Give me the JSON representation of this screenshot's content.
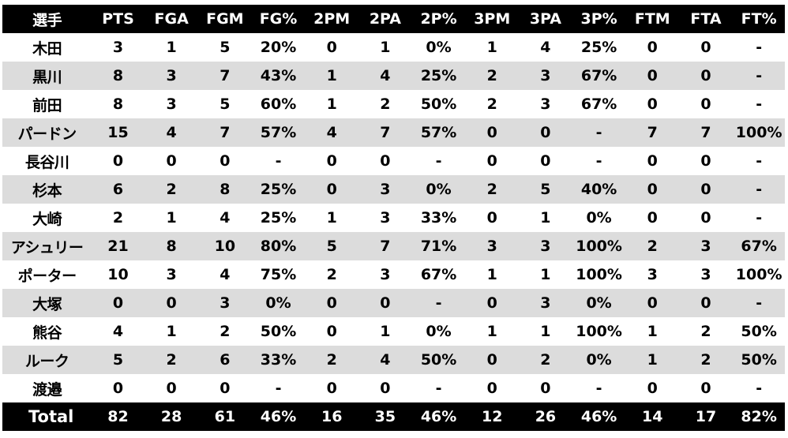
{
  "chart_data": {
    "type": "table",
    "columns": [
      "選手",
      "PTS",
      "FGA",
      "FGM",
      "FG%",
      "2PM",
      "2PA",
      "2P%",
      "3PM",
      "3PA",
      "3P%",
      "FTM",
      "FTA",
      "FT%"
    ],
    "rows": [
      [
        "木田",
        "3",
        "1",
        "5",
        "20%",
        "0",
        "1",
        "0%",
        "1",
        "4",
        "25%",
        "0",
        "0",
        "-"
      ],
      [
        "黒川",
        "8",
        "3",
        "7",
        "43%",
        "1",
        "4",
        "25%",
        "2",
        "3",
        "67%",
        "0",
        "0",
        "-"
      ],
      [
        "前田",
        "8",
        "3",
        "5",
        "60%",
        "1",
        "2",
        "50%",
        "2",
        "3",
        "67%",
        "0",
        "0",
        "-"
      ],
      [
        "パードン",
        "15",
        "4",
        "7",
        "57%",
        "4",
        "7",
        "57%",
        "0",
        "0",
        "-",
        "7",
        "7",
        "100%"
      ],
      [
        "長谷川",
        "0",
        "0",
        "0",
        "-",
        "0",
        "0",
        "-",
        "0",
        "0",
        "-",
        "0",
        "0",
        "-"
      ],
      [
        "杉本",
        "6",
        "2",
        "8",
        "25%",
        "0",
        "3",
        "0%",
        "2",
        "5",
        "40%",
        "0",
        "0",
        "-"
      ],
      [
        "大崎",
        "2",
        "1",
        "4",
        "25%",
        "1",
        "3",
        "33%",
        "0",
        "1",
        "0%",
        "0",
        "0",
        "-"
      ],
      [
        "アシュリー",
        "21",
        "8",
        "10",
        "80%",
        "5",
        "7",
        "71%",
        "3",
        "3",
        "100%",
        "2",
        "3",
        "67%"
      ],
      [
        "ポーター",
        "10",
        "3",
        "4",
        "75%",
        "2",
        "3",
        "67%",
        "1",
        "1",
        "100%",
        "3",
        "3",
        "100%"
      ],
      [
        "大塚",
        "0",
        "0",
        "3",
        "0%",
        "0",
        "0",
        "-",
        "0",
        "3",
        "0%",
        "0",
        "0",
        "-"
      ],
      [
        "熊谷",
        "4",
        "1",
        "2",
        "50%",
        "0",
        "1",
        "0%",
        "1",
        "1",
        "100%",
        "1",
        "2",
        "50%"
      ],
      [
        "ルーク",
        "5",
        "2",
        "6",
        "33%",
        "2",
        "4",
        "50%",
        "0",
        "2",
        "0%",
        "1",
        "2",
        "50%"
      ],
      [
        "渡邉",
        "0",
        "0",
        "0",
        "-",
        "0",
        "0",
        "-",
        "0",
        "0",
        "-",
        "0",
        "0",
        "-"
      ]
    ],
    "totals": [
      "Total",
      "82",
      "28",
      "61",
      "46%",
      "16",
      "35",
      "46%",
      "12",
      "26",
      "46%",
      "14",
      "17",
      "82%"
    ]
  },
  "colors": {
    "header_bg": "#000000",
    "header_text": "#ffffff",
    "row_alt_bg": "#dcdcdc",
    "row_bg": "#ffffff"
  }
}
